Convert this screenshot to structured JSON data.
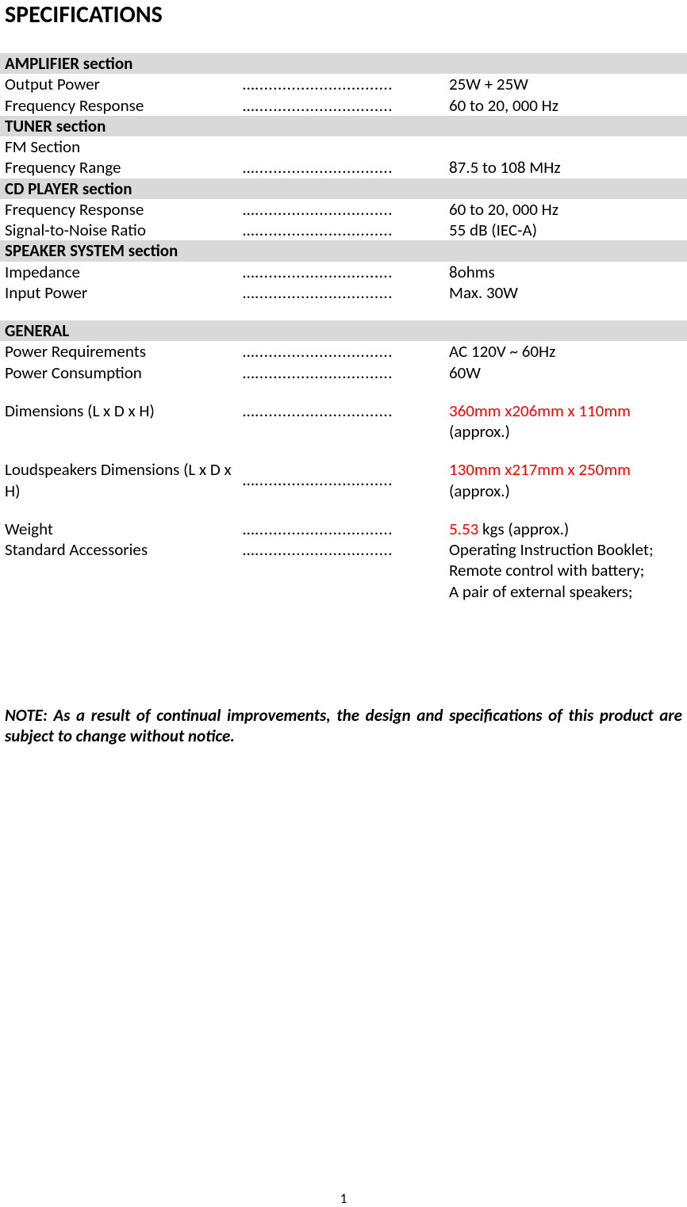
{
  "title": "SPECIFICATIONS",
  "dots": "…..............................",
  "sections": {
    "amp_header": "AMPLIFIER section",
    "amp_output_power_label": "Output Power",
    "amp_output_power_value": "25W + 25W",
    "amp_freq_resp_label": "Frequency Response",
    "amp_freq_resp_value": "60 to 20, 000 Hz",
    "tuner_header": "TUNER section",
    "tuner_fm_section_label": "FM Section",
    "tuner_freq_range_label": "Frequency Range",
    "tuner_freq_range_value": "87.5 to 108 MHz",
    "cd_header": "CD PLAYER section",
    "cd_freq_resp_label": "Frequency Response",
    "cd_freq_resp_value": "60 to 20, 000 Hz",
    "cd_snr_label": "Signal-to-Noise Ratio",
    "cd_snr_value": "55 dB (IEC-A)",
    "spk_header": "SPEAKER SYSTEM section",
    "spk_impedance_label": "Impedance",
    "spk_impedance_value": "8ohms",
    "spk_input_power_label": "Input Power",
    "spk_input_power_value": "Max. 30W",
    "gen_header": "GENERAL",
    "gen_power_req_label": "Power Requirements",
    "gen_power_req_value": "AC 120V ~ 60Hz",
    "gen_power_cons_label": "Power Consumption",
    "gen_power_cons_value": "60W",
    "gen_dim_label": "Dimensions (L x D x H)",
    "gen_dim_value_red": "360mm x206mm x 110mm ",
    "gen_dim_value_suffix": "(approx.)",
    "gen_lsdim_label": "Loudspeakers Dimensions (L x D x H)",
    "gen_lsdim_value_red": "130mm x217mm x 250mm ",
    "gen_lsdim_value_suffix": "(approx.)",
    "gen_weight_label": "Weight",
    "gen_weight_value_red": "5.53 ",
    "gen_weight_value_suffix": "kgs (approx.)",
    "gen_acc_label": "Standard Accessories",
    "gen_acc_value_line1": "Operating Instruction Booklet;",
    "gen_acc_value_line2": "Remote control with battery;",
    "gen_acc_value_line3": "A pair of external speakers;"
  },
  "note": "NOTE: As a result of continual improvements, the design and specifications of this product are subject to change without notice.",
  "page_number": "1"
}
